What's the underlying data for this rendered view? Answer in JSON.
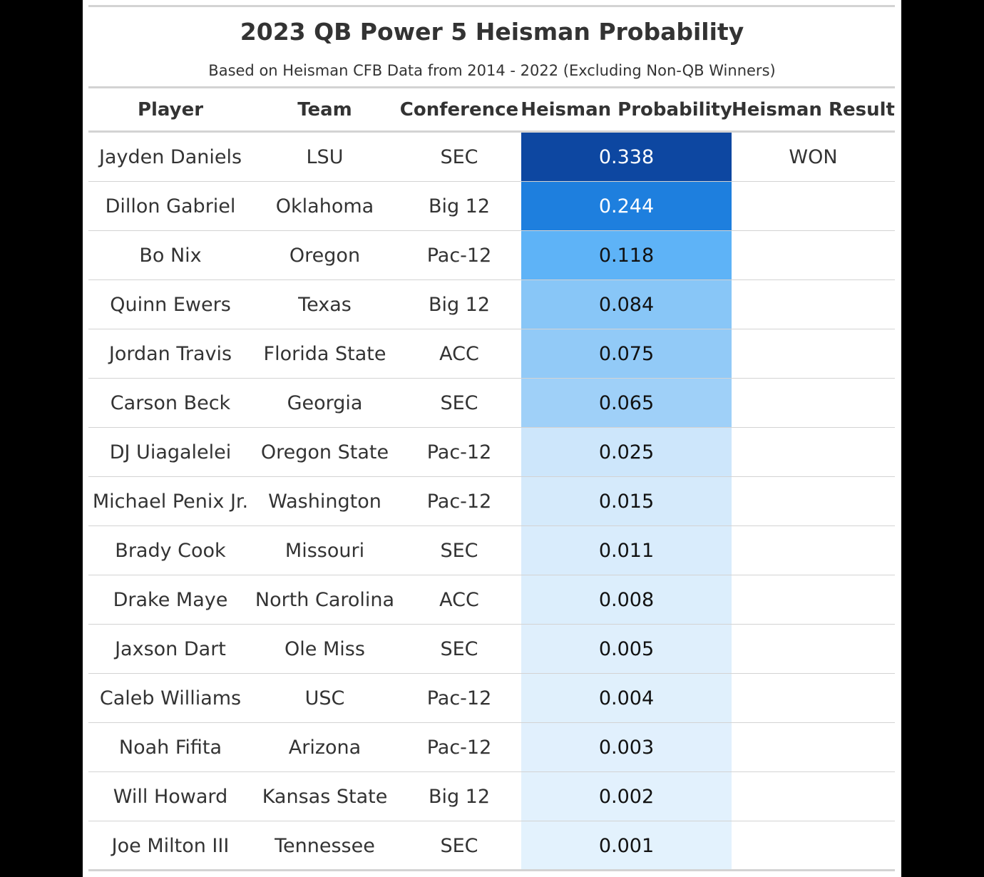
{
  "chart_data": {
    "type": "table",
    "title": "2023 QB Power 5 Heisman Probability",
    "subtitle": "Based on Heisman CFB Data from 2014 - 2022 (Excluding Non-QB Winners)",
    "columns": [
      "Player",
      "Team",
      "Conference",
      "Heisman Probability",
      "Heisman Result"
    ],
    "rows": [
      {
        "player": "Jayden Daniels",
        "team": "LSU",
        "conference": "SEC",
        "probability": "0.338",
        "result": "WON",
        "cell_bg": "#0d47a1",
        "cell_fg": "#ffffff"
      },
      {
        "player": "Dillon Gabriel",
        "team": "Oklahoma",
        "conference": "Big 12",
        "probability": "0.244",
        "result": "",
        "cell_bg": "#1e7fde",
        "cell_fg": "#ffffff"
      },
      {
        "player": "Bo Nix",
        "team": "Oregon",
        "conference": "Pac-12",
        "probability": "0.118",
        "result": "",
        "cell_bg": "#5eb3f7",
        "cell_fg": "#111111"
      },
      {
        "player": "Quinn Ewers",
        "team": "Texas",
        "conference": "Big 12",
        "probability": "0.084",
        "result": "",
        "cell_bg": "#88c6f7",
        "cell_fg": "#111111"
      },
      {
        "player": "Jordan Travis",
        "team": "Florida State",
        "conference": "ACC",
        "probability": "0.075",
        "result": "",
        "cell_bg": "#92caf7",
        "cell_fg": "#111111"
      },
      {
        "player": "Carson Beck",
        "team": "Georgia",
        "conference": "SEC",
        "probability": "0.065",
        "result": "",
        "cell_bg": "#9fd0f8",
        "cell_fg": "#111111"
      },
      {
        "player": "DJ Uiagalelei",
        "team": "Oregon State",
        "conference": "Pac-12",
        "probability": "0.025",
        "result": "",
        "cell_bg": "#cde6fb",
        "cell_fg": "#111111"
      },
      {
        "player": "Michael Penix Jr.",
        "team": "Washington",
        "conference": "Pac-12",
        "probability": "0.015",
        "result": "",
        "cell_bg": "#d5eafb",
        "cell_fg": "#111111"
      },
      {
        "player": "Brady Cook",
        "team": "Missouri",
        "conference": "SEC",
        "probability": "0.011",
        "result": "",
        "cell_bg": "#d9ecfc",
        "cell_fg": "#111111"
      },
      {
        "player": "Drake Maye",
        "team": "North Carolina",
        "conference": "ACC",
        "probability": "0.008",
        "result": "",
        "cell_bg": "#dceefc",
        "cell_fg": "#111111"
      },
      {
        "player": "Jaxson Dart",
        "team": "Ole Miss",
        "conference": "SEC",
        "probability": "0.005",
        "result": "",
        "cell_bg": "#dfeffc",
        "cell_fg": "#111111"
      },
      {
        "player": "Caleb Williams",
        "team": "USC",
        "conference": "Pac-12",
        "probability": "0.004",
        "result": "",
        "cell_bg": "#e0f0fc",
        "cell_fg": "#111111"
      },
      {
        "player": "Noah Fifita",
        "team": "Arizona",
        "conference": "Pac-12",
        "probability": "0.003",
        "result": "",
        "cell_bg": "#e1f0fd",
        "cell_fg": "#111111"
      },
      {
        "player": "Will Howard",
        "team": "Kansas State",
        "conference": "Big 12",
        "probability": "0.002",
        "result": "",
        "cell_bg": "#e2f1fd",
        "cell_fg": "#111111"
      },
      {
        "player": "Joe Milton III",
        "team": "Tennessee",
        "conference": "SEC",
        "probability": "0.001",
        "result": "",
        "cell_bg": "#e3f2fd",
        "cell_fg": "#111111"
      }
    ]
  }
}
